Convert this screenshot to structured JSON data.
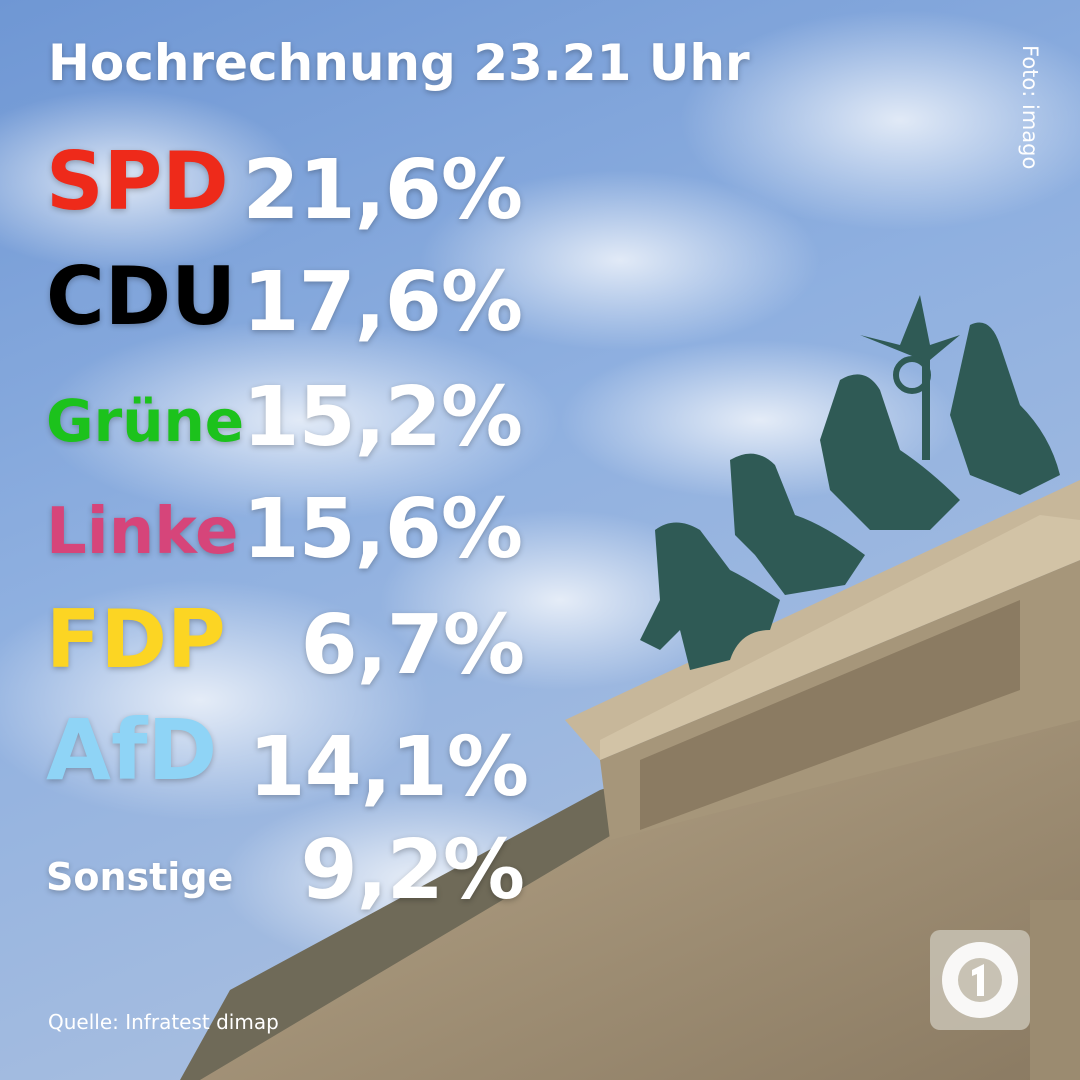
{
  "header": {
    "title": "Hochrechnung 23.21 Uhr"
  },
  "credit": "Foto: imago",
  "results": [
    {
      "party": "SPD",
      "share": "21,6%"
    },
    {
      "party": "CDU",
      "share": "17,6%"
    },
    {
      "party": "Grüne",
      "share": "15,2%"
    },
    {
      "party": "Linke",
      "share": "15,6%"
    },
    {
      "party": "FDP",
      "share": "6,7%"
    },
    {
      "party": "AfD",
      "share": "14,1%"
    },
    {
      "party": "Sonstige",
      "share": "9,2%"
    }
  ],
  "source": "Quelle: Infratest dimap"
}
